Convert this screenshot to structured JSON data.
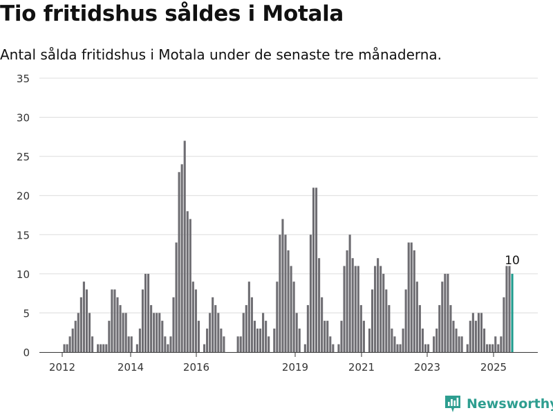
{
  "title": "Tio fritidshus såldes i Motala",
  "subtitle": "Antal sålda fritidshus i Motala under de senaste tre månaderna.",
  "brand": {
    "name": "Newsworthy",
    "icon": "newsworthy-logo-icon",
    "color": "#2e9e90"
  },
  "chart_data": {
    "type": "bar",
    "title": "",
    "xlabel": "",
    "ylabel": "",
    "ylim": [
      0,
      35
    ],
    "yticks": [
      0,
      5,
      10,
      15,
      20,
      25,
      30,
      35
    ],
    "xticks": [
      "2012",
      "2014",
      "2016",
      "2019",
      "2021",
      "2023",
      "2025"
    ],
    "grid": true,
    "bar_color": "#6e6d72",
    "highlight_color": "#1f9c8e",
    "highlight_label": "10",
    "series": [
      {
        "values": [
          1,
          1,
          2,
          3,
          4,
          5,
          7,
          9,
          8,
          5,
          2,
          0,
          1,
          1,
          1,
          1,
          4,
          8,
          8,
          7,
          6,
          5,
          5,
          2,
          2,
          0,
          1,
          3,
          8,
          10,
          10,
          6,
          5,
          5,
          5,
          4,
          2,
          1,
          2,
          7,
          14,
          23,
          24,
          27,
          18,
          17,
          9,
          8,
          4,
          0,
          1,
          3,
          5,
          7,
          6,
          5,
          3,
          2,
          0,
          0,
          0,
          0,
          2,
          2,
          5,
          6,
          9,
          7,
          4,
          3,
          3,
          5,
          4,
          2,
          0,
          3,
          9,
          15,
          17,
          15,
          13,
          11,
          9,
          5,
          3,
          0,
          1,
          6,
          15,
          21,
          21,
          12,
          7,
          4,
          4,
          2,
          1,
          0,
          1,
          4,
          11,
          13,
          15,
          12,
          11,
          11,
          6,
          4,
          0,
          3,
          8,
          11,
          12,
          11,
          10,
          8,
          6,
          3,
          2,
          1,
          1,
          3,
          8,
          14,
          14,
          13,
          9,
          6,
          3,
          1,
          1,
          0,
          2,
          3,
          6,
          9,
          10,
          10,
          6,
          4,
          3,
          2,
          2,
          0,
          1,
          4,
          5,
          4,
          5,
          5,
          3,
          1,
          1,
          1,
          2,
          1,
          2,
          7,
          11,
          11,
          10
        ]
      }
    ]
  }
}
